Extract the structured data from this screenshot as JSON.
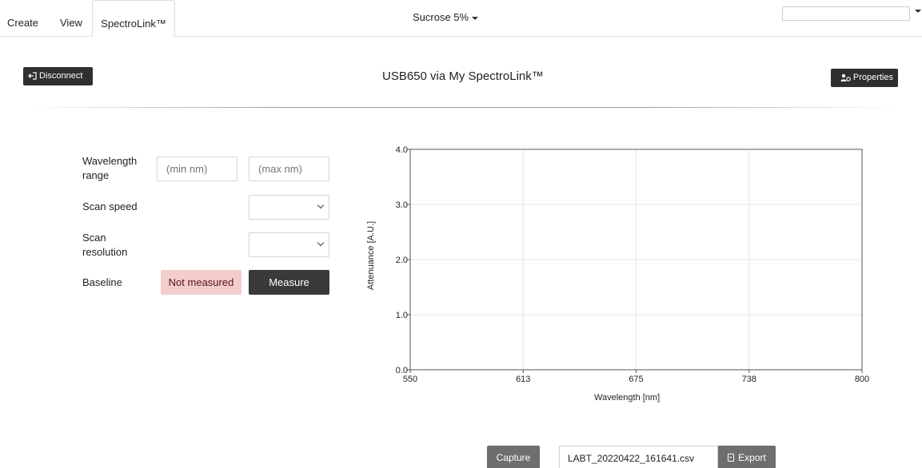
{
  "nav": {
    "tabs": [
      {
        "label": "Create"
      },
      {
        "label": "View"
      },
      {
        "label": "SpectroLink™"
      }
    ],
    "sample_select": "Sucrose 5%",
    "top_input_value": ""
  },
  "header": {
    "disconnect_label": "Disconnect",
    "device_title": "USB650 via My SpectroLink™",
    "properties_label": "Properties"
  },
  "form": {
    "wavelength_label": "Wavelength range",
    "min_placeholder": "(min nm)",
    "max_placeholder": "(max nm)",
    "scan_speed_label": "Scan speed",
    "scan_speed_value": "",
    "scan_resolution_label": "Scan resolution",
    "scan_resolution_value": "",
    "baseline_label": "Baseline",
    "baseline_status": "Not measured",
    "measure_label": "Measure"
  },
  "chart_data": {
    "type": "line",
    "title": "",
    "xlabel": "Wavelength [nm]",
    "ylabel": "Attenuance [A.U.]",
    "xlim": [
      550,
      800
    ],
    "ylim": [
      0,
      4
    ],
    "x_ticks": [
      "550",
      "613",
      "675",
      "738",
      "800"
    ],
    "y_ticks": [
      "0.0",
      "1.0",
      "2.0",
      "3.0",
      "4.0"
    ],
    "grid": true,
    "series": []
  },
  "footer": {
    "capture_label": "Capture",
    "filename": "LABT_20220422_161641.csv",
    "export_label": "Export"
  }
}
